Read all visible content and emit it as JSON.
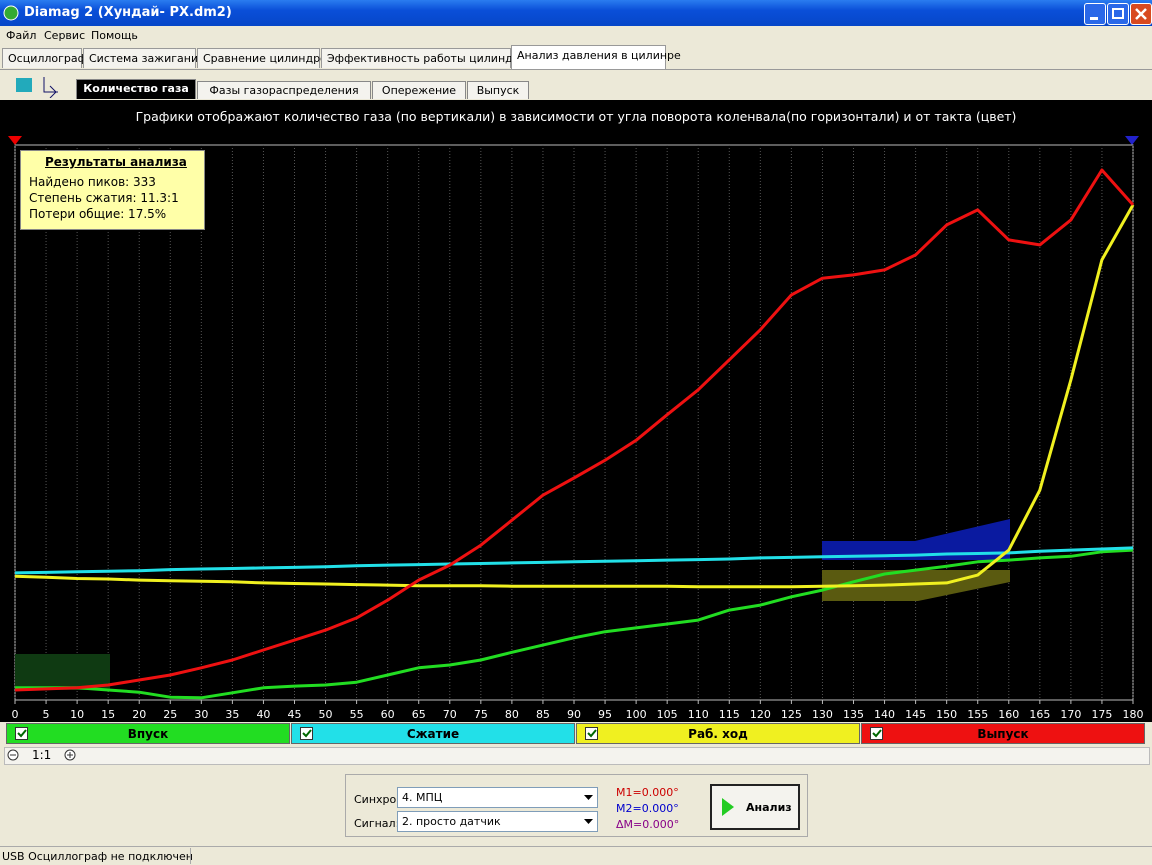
{
  "window": {
    "title": "Diamag 2 (Хундай- РХ.dm2)"
  },
  "menu": [
    "Файл",
    "Сервис",
    "Помощь"
  ],
  "tabs": [
    "Осциллограф",
    "Система зажигания",
    "Сравнение цилиндров",
    "Эффективность работы цилиндров",
    "Анализ давления в цилинре"
  ],
  "subtabs": [
    "Количество газа",
    "Фазы газораспределения",
    "Опережение",
    "Выпуск"
  ],
  "results": {
    "title": "Результаты анализа",
    "lines": [
      "Найдено пиков: 333",
      "Степень сжатия: 11.3:1",
      "Потери общие: 17.5%"
    ]
  },
  "chart_data": {
    "type": "line",
    "title": "Графики отображают количество газа (по вертикали) в зависимости от угла поворота коленвала(по горизонтали) и от такта (цвет)",
    "x": [
      0,
      5,
      10,
      15,
      20,
      25,
      30,
      35,
      40,
      45,
      50,
      55,
      60,
      65,
      70,
      75,
      80,
      85,
      90,
      95,
      100,
      105,
      110,
      115,
      120,
      125,
      130,
      135,
      140,
      145,
      150,
      155,
      160,
      165,
      170,
      175,
      180
    ],
    "xlim": [
      0,
      180
    ],
    "xticks": [
      0,
      5,
      10,
      15,
      20,
      25,
      30,
      35,
      40,
      45,
      50,
      55,
      60,
      65,
      70,
      75,
      80,
      85,
      90,
      95,
      100,
      105,
      110,
      115,
      120,
      125,
      130,
      135,
      140,
      145,
      150,
      155,
      160,
      165,
      170,
      175,
      180
    ],
    "ylim": [
      0,
      100
    ],
    "grid": true,
    "series": [
      {
        "name": "Впуск",
        "color": "#22dd22",
        "values": [
          2.2,
          2.2,
          2.2,
          1.8,
          1.4,
          0.5,
          0.4,
          1.3,
          2.2,
          2.5,
          2.7,
          3.2,
          4.5,
          5.8,
          6.3,
          7.2,
          8.6,
          9.9,
          11.2,
          12.3,
          13,
          13.7,
          14.4,
          16.2,
          17.1,
          18.6,
          19.8,
          21.3,
          22.7,
          23.4,
          24.1,
          24.9,
          25.2,
          25.6,
          25.9,
          26.7,
          27
        ]
      },
      {
        "name": "Сжатие",
        "color": "#22e0e8",
        "values": [
          22.9,
          23,
          23.1,
          23.2,
          23.3,
          23.5,
          23.6,
          23.7,
          23.8,
          23.9,
          24,
          24.2,
          24.3,
          24.4,
          24.5,
          24.6,
          24.7,
          24.8,
          24.9,
          25,
          25.1,
          25.2,
          25.3,
          25.4,
          25.6,
          25.7,
          25.8,
          25.9,
          26,
          26.1,
          26.3,
          26.4,
          26.5,
          26.8,
          27,
          27.2,
          27.4
        ]
      },
      {
        "name": "Раб. ход",
        "color": "#f0f020",
        "values": [
          22.3,
          22.1,
          21.9,
          21.8,
          21.6,
          21.5,
          21.4,
          21.3,
          21.1,
          21,
          20.9,
          20.8,
          20.7,
          20.6,
          20.6,
          20.6,
          20.5,
          20.5,
          20.5,
          20.5,
          20.5,
          20.5,
          20.4,
          20.4,
          20.4,
          20.4,
          20.5,
          20.6,
          20.7,
          20.9,
          21.1,
          22.5,
          27,
          37.8,
          57.7,
          79.3,
          89.2
        ]
      },
      {
        "name": "Выпуск",
        "color": "#ee1111",
        "values": [
          1.8,
          2,
          2.2,
          2.7,
          3.6,
          4.5,
          5.8,
          7.2,
          9,
          10.8,
          12.6,
          14.8,
          18,
          21.6,
          24.3,
          27.9,
          32.4,
          36.9,
          40,
          43.2,
          46.8,
          51.4,
          55.9,
          61.3,
          66.7,
          73,
          76,
          76.6,
          77.5,
          80.2,
          85.6,
          88.3,
          82.9,
          82,
          86.5,
          95.5,
          89.2
        ]
      }
    ]
  },
  "zoom": "1:1",
  "controls": {
    "sync_label": "Синхро:",
    "sync_value": "4.  МПЦ",
    "signal_label": "Сигнал:",
    "signal_value": "2.  просто датчик",
    "m1": "M1=0.000°",
    "m2": "M2=0.000°",
    "dm": "ΔM=0.000°",
    "analyze": "Анализ"
  },
  "status": "USB Осциллограф не подключен"
}
